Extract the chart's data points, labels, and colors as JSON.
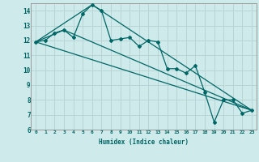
{
  "xlabel": "Humidex (Indice chaleur)",
  "ylabel": "",
  "bg_color": "#ceeaea",
  "grid_color": "#b8d4d4",
  "line_color": "#006666",
  "xlim": [
    -0.5,
    23.5
  ],
  "ylim": [
    6,
    14.5
  ],
  "yticks": [
    6,
    7,
    8,
    9,
    10,
    11,
    12,
    13,
    14
  ],
  "xticks": [
    0,
    1,
    2,
    3,
    4,
    5,
    6,
    7,
    8,
    9,
    10,
    11,
    12,
    13,
    14,
    15,
    16,
    17,
    18,
    19,
    20,
    21,
    22,
    23
  ],
  "series1": {
    "x": [
      0,
      1,
      2,
      3,
      4,
      5,
      6,
      7,
      8,
      9,
      10,
      11,
      12,
      13,
      14,
      15,
      16,
      17,
      18,
      19,
      20,
      21,
      22,
      23
    ],
    "y": [
      11.9,
      12.0,
      12.5,
      12.7,
      12.2,
      13.8,
      14.4,
      14.0,
      12.0,
      12.1,
      12.2,
      11.6,
      12.0,
      11.9,
      10.1,
      10.1,
      9.8,
      10.3,
      8.5,
      6.5,
      8.0,
      8.0,
      7.1,
      7.3
    ]
  },
  "series2_x": [
    0,
    23
  ],
  "series2_y": [
    11.9,
    7.3
  ],
  "series3_x": [
    0,
    6,
    23
  ],
  "series3_y": [
    11.9,
    14.4,
    7.3
  ],
  "series4_x": [
    0,
    3,
    23
  ],
  "series4_y": [
    11.9,
    12.7,
    7.3
  ]
}
